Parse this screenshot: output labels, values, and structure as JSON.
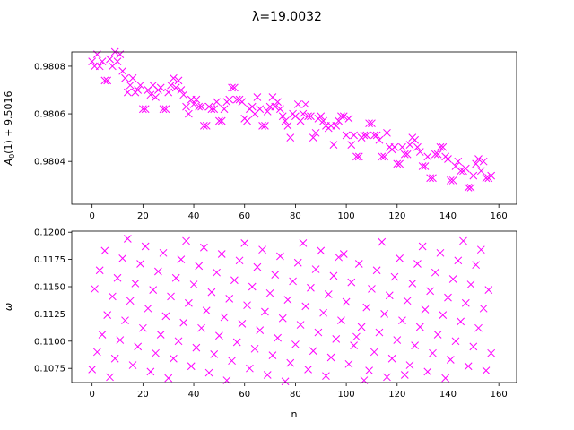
{
  "chart_data": {
    "suptitle": "λ=19.0032",
    "marker_color": "#ff00ff",
    "panels": [
      {
        "type": "scatter",
        "marker": "x",
        "ylabel": "A_0(1) + 9.5016",
        "ylabel_parts": {
          "main": "A",
          "sub": "0",
          "rest": "(1) + 9.5016"
        },
        "xlim": [
          -8,
          167
        ],
        "ylim": [
          0.98022,
          0.98086
        ],
        "xticks": [
          0,
          20,
          40,
          60,
          80,
          100,
          120,
          140,
          160
        ],
        "xtick_labels": [
          "0",
          "20",
          "40",
          "60",
          "80",
          "100",
          "120",
          "140",
          "160"
        ],
        "yticks": [
          0.9804,
          0.9806,
          0.9808
        ],
        "ytick_labels": [
          "0.9804",
          "0.9806",
          "0.9808"
        ],
        "x": [
          0,
          1,
          2,
          3,
          4,
          5,
          6,
          7,
          8,
          9,
          10,
          11,
          12,
          13,
          14,
          15,
          16,
          17,
          18,
          19,
          20,
          21,
          22,
          23,
          24,
          25,
          26,
          27,
          28,
          29,
          30,
          31,
          32,
          33,
          34,
          35,
          36,
          37,
          38,
          39,
          40,
          41,
          42,
          43,
          44,
          45,
          46,
          47,
          48,
          49,
          50,
          51,
          52,
          53,
          54,
          55,
          56,
          57,
          58,
          59,
          60,
          61,
          62,
          63,
          64,
          65,
          66,
          67,
          68,
          69,
          70,
          71,
          72,
          73,
          74,
          75,
          76,
          77,
          78,
          79,
          80,
          81,
          82,
          83,
          84,
          85,
          86,
          87,
          88,
          89,
          90,
          91,
          92,
          93,
          94,
          95,
          96,
          97,
          98,
          99,
          100,
          101,
          102,
          103,
          104,
          105,
          106,
          107,
          108,
          109,
          110,
          111,
          112,
          113,
          114,
          115,
          116,
          117,
          118,
          119,
          120,
          121,
          122,
          123,
          124,
          125,
          126,
          127,
          128,
          129,
          130,
          131,
          132,
          133,
          134,
          135,
          136,
          137,
          138,
          139,
          140,
          141,
          142,
          143,
          144,
          145,
          146,
          147,
          148,
          149,
          150,
          151,
          152,
          153,
          154,
          155,
          156,
          157
        ],
        "y": [
          0.98082,
          0.9808,
          0.98085,
          0.9808,
          0.98082,
          0.98074,
          0.98074,
          0.98083,
          0.9808,
          0.98086,
          0.98082,
          0.98085,
          0.98078,
          0.98075,
          0.98069,
          0.98072,
          0.98075,
          0.98069,
          0.9807,
          0.98072,
          0.98062,
          0.98062,
          0.9807,
          0.98068,
          0.98072,
          0.98067,
          0.9807,
          0.98071,
          0.98062,
          0.98062,
          0.98069,
          0.98072,
          0.98075,
          0.98071,
          0.98074,
          0.9807,
          0.98068,
          0.98063,
          0.9806,
          0.98066,
          0.98064,
          0.98066,
          0.98063,
          0.98063,
          0.98055,
          0.98055,
          0.98063,
          0.98062,
          0.98062,
          0.98065,
          0.98057,
          0.98057,
          0.98062,
          0.98065,
          0.98066,
          0.98071,
          0.98071,
          0.98066,
          0.98066,
          0.98065,
          0.98058,
          0.98057,
          0.98062,
          0.98063,
          0.9806,
          0.98067,
          0.98062,
          0.98055,
          0.98055,
          0.98061,
          0.98063,
          0.98067,
          0.98063,
          0.98065,
          0.98062,
          0.98059,
          0.98057,
          0.98055,
          0.9805,
          0.9806,
          0.98059,
          0.98064,
          0.98057,
          0.9806,
          0.98064,
          0.98059,
          0.98059,
          0.9805,
          0.98052,
          0.98058,
          0.98059,
          0.98057,
          0.98055,
          0.98054,
          0.98055,
          0.98047,
          0.98055,
          0.98057,
          0.98059,
          0.98059,
          0.98051,
          0.98058,
          0.98047,
          0.98051,
          0.98042,
          0.98042,
          0.9805,
          0.98051,
          0.98051,
          0.98056,
          0.98056,
          0.98051,
          0.98051,
          0.98049,
          0.98042,
          0.98042,
          0.98052,
          0.98046,
          0.98045,
          0.98046,
          0.98039,
          0.98039,
          0.98046,
          0.98043,
          0.98043,
          0.98047,
          0.9805,
          0.98049,
          0.98046,
          0.98044,
          0.98038,
          0.98038,
          0.98042,
          0.98033,
          0.98033,
          0.98043,
          0.98043,
          0.98046,
          0.98046,
          0.98042,
          0.98041,
          0.98032,
          0.98032,
          0.98038,
          0.9804,
          0.98036,
          0.98036,
          0.98037,
          0.98029,
          0.98029,
          0.98034,
          0.98039,
          0.98041,
          0.98036,
          0.9804,
          0.98033,
          0.98033,
          0.98034
        ]
      },
      {
        "type": "scatter",
        "marker": "x",
        "ylabel": "ω",
        "xlabel": "n",
        "xlim": [
          -8,
          167
        ],
        "ylim": [
          0.1062,
          0.1201
        ],
        "xticks": [
          0,
          20,
          40,
          60,
          80,
          100,
          120,
          140,
          160
        ],
        "xtick_labels": [
          "0",
          "20",
          "40",
          "60",
          "80",
          "100",
          "120",
          "140",
          "160"
        ],
        "yticks": [
          0.1075,
          0.11,
          0.1125,
          0.115,
          0.1175,
          0.12
        ],
        "ytick_labels": [
          "0.1075",
          "0.1100",
          "0.1125",
          "0.1150",
          "0.1175",
          "0.1200"
        ],
        "x": [
          0,
          1,
          2,
          3,
          4,
          5,
          6,
          7,
          8,
          9,
          10,
          11,
          12,
          13,
          14,
          15,
          16,
          17,
          18,
          19,
          20,
          21,
          22,
          23,
          24,
          25,
          26,
          27,
          28,
          29,
          30,
          31,
          32,
          33,
          34,
          35,
          36,
          37,
          38,
          39,
          40,
          41,
          42,
          43,
          44,
          45,
          46,
          47,
          48,
          49,
          50,
          51,
          52,
          53,
          54,
          55,
          56,
          57,
          58,
          59,
          60,
          61,
          62,
          63,
          64,
          65,
          66,
          67,
          68,
          69,
          70,
          71,
          72,
          73,
          74,
          75,
          76,
          77,
          78,
          79,
          80,
          81,
          82,
          83,
          84,
          85,
          86,
          87,
          88,
          89,
          90,
          91,
          92,
          93,
          94,
          95,
          96,
          97,
          98,
          99,
          100,
          101,
          102,
          103,
          104,
          105,
          106,
          107,
          108,
          109,
          110,
          111,
          112,
          113,
          114,
          115,
          116,
          117,
          118,
          119,
          120,
          121,
          122,
          123,
          124,
          125,
          126,
          127,
          128,
          129,
          130,
          131,
          132,
          133,
          134,
          135,
          136,
          137,
          138,
          139,
          140,
          141,
          142,
          143,
          144,
          145,
          146,
          147,
          148,
          149,
          150,
          151,
          152,
          153,
          154,
          155,
          156,
          157
        ],
        "y": [
          0.1074,
          0.1148,
          0.109,
          0.1165,
          0.1106,
          0.1183,
          0.1124,
          0.1067,
          0.1141,
          0.1084,
          0.1158,
          0.1101,
          0.1176,
          0.1119,
          0.1194,
          0.1137,
          0.1078,
          0.1153,
          0.1095,
          0.1171,
          0.1112,
          0.1187,
          0.113,
          0.1072,
          0.1147,
          0.1089,
          0.1164,
          0.1106,
          0.1181,
          0.1123,
          0.1066,
          0.1141,
          0.1084,
          0.1158,
          0.11,
          0.1175,
          0.1117,
          0.1192,
          0.1135,
          0.1077,
          0.1152,
          0.1094,
          0.1169,
          0.1112,
          0.1186,
          0.1128,
          0.1071,
          0.1145,
          0.1088,
          0.1163,
          0.1105,
          0.118,
          0.1122,
          0.1064,
          0.1139,
          0.1082,
          0.1156,
          0.1099,
          0.1174,
          0.1116,
          0.119,
          0.1133,
          0.1075,
          0.115,
          0.1093,
          0.1168,
          0.111,
          0.1184,
          0.1127,
          0.1069,
          0.1144,
          0.1087,
          0.1161,
          0.1103,
          0.1178,
          0.1121,
          0.1063,
          0.1138,
          0.108,
          0.1155,
          0.1097,
          0.1172,
          0.1115,
          0.119,
          0.1132,
          0.1074,
          0.1149,
          0.1091,
          0.1166,
          0.1108,
          0.1183,
          0.1126,
          0.1068,
          0.1143,
          0.1085,
          0.116,
          0.1102,
          0.1177,
          0.1119,
          0.118,
          0.1136,
          0.1079,
          0.1154,
          0.1096,
          0.1104,
          0.1171,
          0.1113,
          0.1064,
          0.1131,
          0.1073,
          0.1148,
          0.109,
          0.1165,
          0.1108,
          0.1191,
          0.1125,
          0.1067,
          0.1142,
          0.1084,
          0.1159,
          0.1101,
          0.1176,
          0.1119,
          0.1069,
          0.1137,
          0.1078,
          0.1153,
          0.1096,
          0.1171,
          0.1113,
          0.1187,
          0.1129,
          0.1072,
          0.1146,
          0.1089,
          0.1163,
          0.1106,
          0.1181,
          0.1124,
          0.1066,
          0.114,
          0.1083,
          0.1157,
          0.11,
          0.1174,
          0.1118,
          0.1192,
          0.1135,
          0.1077,
          0.1152,
          0.1095,
          0.117,
          0.1112,
          0.1184,
          0.113,
          0.1073,
          0.1147,
          0.1089
        ]
      }
    ]
  }
}
